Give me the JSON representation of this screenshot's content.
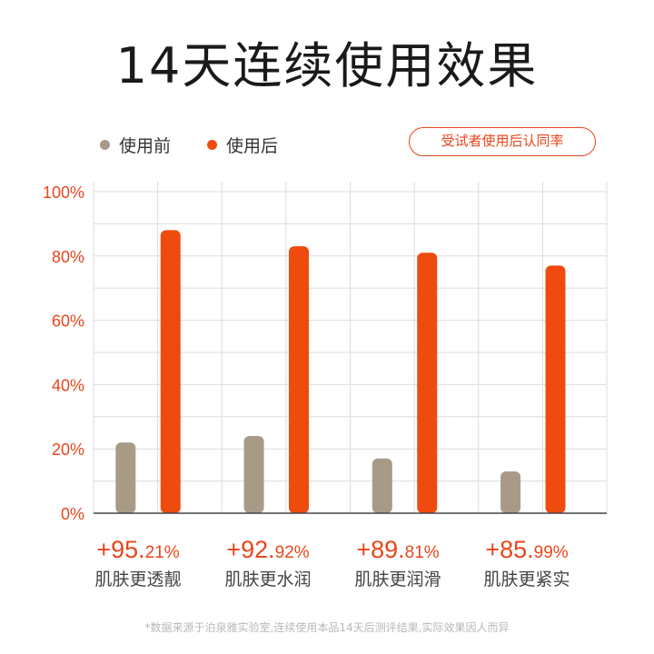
{
  "title": "14天连续使用效果",
  "badge": "受试者使用后认同率",
  "footnote": "*数据来源于泊泉雅实验室,连续使用本品14天后测评结果,实际效果因人而异",
  "colors": {
    "before": "#a99a88",
    "after": "#ef4b0f",
    "accent": "#e8461c",
    "grid": "#dcdcdc"
  },
  "chart_data": {
    "type": "bar",
    "categories": [
      "肌肤更透靓",
      "肌肤更水润",
      "肌肤更润滑",
      "肌肤更紧实"
    ],
    "series": [
      {
        "name": "使用前",
        "values": [
          22,
          24,
          17,
          13
        ]
      },
      {
        "name": "使用后",
        "values": [
          88,
          83,
          81,
          77
        ]
      }
    ],
    "y_tick_labels": [
      "100%",
      "80%",
      "60%",
      "40%",
      "20%",
      "0%"
    ],
    "ylim": [
      0,
      100
    ],
    "grid": true,
    "legend": "top-left"
  },
  "stats": [
    {
      "int": "+95.",
      "dec": "21%",
      "label": "肌肤更透靓"
    },
    {
      "int": "+92.",
      "dec": "92%",
      "label": "肌肤更水润"
    },
    {
      "int": "+89.",
      "dec": "81%",
      "label": "肌肤更润滑"
    },
    {
      "int": "+85.",
      "dec": "99%",
      "label": "肌肤更紧实"
    }
  ]
}
